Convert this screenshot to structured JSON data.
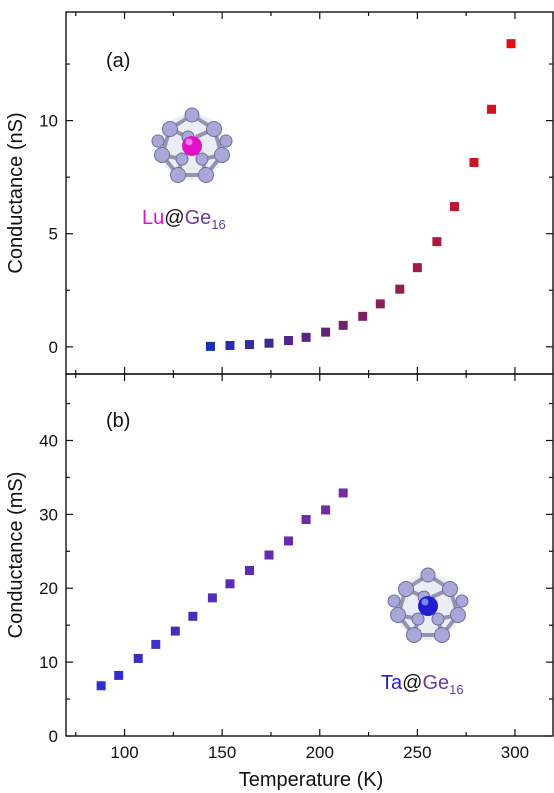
{
  "chart_data": [
    {
      "type": "scatter",
      "panel": "(a)",
      "ylabel": "Conductance (nS)",
      "xlim": [
        70,
        320
      ],
      "ylim": [
        -1.2,
        14.8
      ],
      "yticks": [
        0,
        5,
        10
      ],
      "molecule": {
        "metal": "Lu",
        "at": "@",
        "cage": "Ge",
        "subscript": "16",
        "metal_color": "#e010c8",
        "cage_color": "#6a3aa0"
      },
      "series": [
        {
          "x": [
            144,
            154,
            164,
            174,
            184,
            193,
            203,
            212,
            222,
            231,
            241,
            250,
            260,
            269,
            279,
            288,
            298
          ],
          "y": [
            0.02,
            0.06,
            0.1,
            0.16,
            0.28,
            0.42,
            0.65,
            0.95,
            1.35,
            1.9,
            2.55,
            3.5,
            4.65,
            6.2,
            8.15,
            10.5,
            13.4
          ]
        }
      ]
    },
    {
      "type": "scatter",
      "panel": "(b)",
      "xlabel": "Temperature (K)",
      "ylabel": "Conductance (mS)",
      "xlim": [
        70,
        320
      ],
      "ylim": [
        0,
        49
      ],
      "xticks": [
        100,
        150,
        200,
        250,
        300
      ],
      "yticks": [
        0,
        10,
        20,
        30,
        40
      ],
      "molecule": {
        "metal": "Ta",
        "at": "@",
        "cage": "Ge",
        "subscript": "16",
        "metal_color": "#1f1fd0",
        "cage_color": "#6a3aa0"
      },
      "series": [
        {
          "x": [
            88,
            97,
            107,
            116,
            126,
            135,
            145,
            154,
            164,
            174,
            184,
            193,
            203,
            212
          ],
          "y": [
            6.8,
            8.2,
            10.5,
            12.4,
            14.2,
            16.2,
            18.7,
            20.6,
            22.4,
            24.5,
            26.4,
            29.3,
            30.6,
            32.9
          ]
        }
      ]
    }
  ]
}
